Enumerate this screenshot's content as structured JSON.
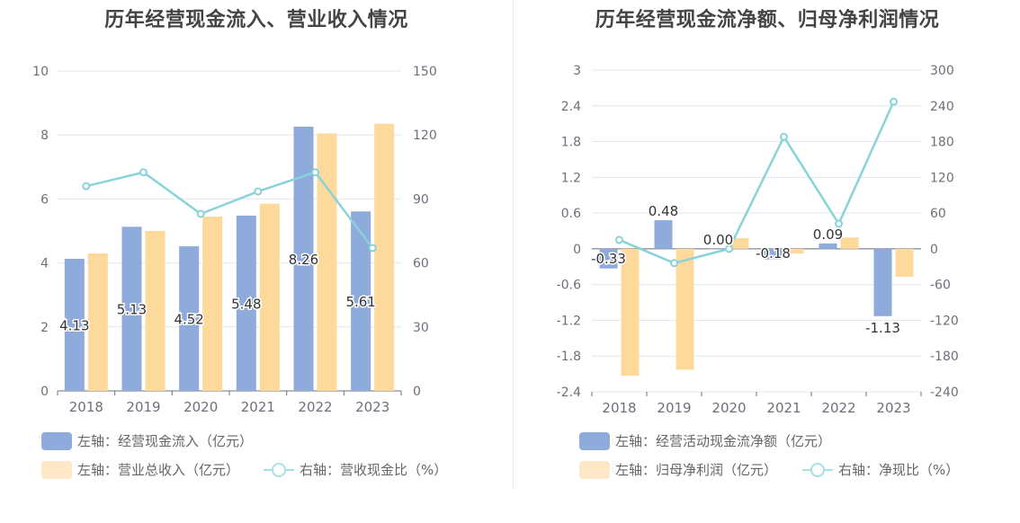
{
  "chart_data": [
    {
      "type": "bar",
      "title": "历年经营现金流入、营业收入情况",
      "categories": [
        "2018",
        "2019",
        "2020",
        "2021",
        "2022",
        "2023"
      ],
      "left_axis": {
        "ticks": [
          "0",
          "2",
          "4",
          "6",
          "8",
          "10"
        ],
        "ylim": [
          0,
          10
        ]
      },
      "right_axis": {
        "ticks": [
          "0",
          "30",
          "60",
          "90",
          "120",
          "150"
        ],
        "ylim": [
          0,
          150
        ]
      },
      "series": [
        {
          "name": "左轴：经营现金流入（亿元）",
          "axis": "left",
          "type": "bar",
          "color": "#8eabdb",
          "values": [
            4.13,
            5.13,
            4.52,
            5.48,
            8.26,
            5.61
          ],
          "labels": [
            "4.13",
            "5.13",
            "4.52",
            "5.48",
            "8.26",
            "5.61"
          ]
        },
        {
          "name": "左轴：营业总收入（亿元）",
          "axis": "left",
          "type": "bar",
          "color": "#fdd99b",
          "values": [
            4.3,
            5.0,
            5.45,
            5.85,
            8.05,
            8.35
          ]
        },
        {
          "name": "右轴：营收现金比（%）",
          "axis": "right",
          "type": "line",
          "color": "#88d3da",
          "values": [
            96,
            102.5,
            83,
            93.5,
            102.5,
            67
          ]
        }
      ],
      "grid": true,
      "legend_position": "bottom"
    },
    {
      "type": "bar",
      "title": "历年经营现金流净额、归母净利润情况",
      "categories": [
        "2018",
        "2019",
        "2020",
        "2021",
        "2022",
        "2023"
      ],
      "left_axis": {
        "ticks": [
          "-2.4",
          "-1.8",
          "-1.2",
          "-0.6",
          "0",
          "0.6",
          "1.2",
          "1.8",
          "2.4",
          "3"
        ],
        "ylim": [
          -2.4,
          3
        ]
      },
      "right_axis": {
        "ticks": [
          "-240",
          "-180",
          "-120",
          "-60",
          "0",
          "60",
          "120",
          "180",
          "240",
          "300"
        ],
        "ylim": [
          -240,
          300
        ]
      },
      "series": [
        {
          "name": "左轴：经营活动现金流净额（亿元）",
          "axis": "left",
          "type": "bar",
          "color": "#8eabdb",
          "values": [
            -0.33,
            0.48,
            0.0,
            -0.18,
            0.09,
            -1.13
          ],
          "labels": [
            "-0.33",
            "0.48",
            "0.00",
            "-0.18",
            "0.09",
            "-1.13"
          ]
        },
        {
          "name": "左轴：归母净利润（亿元）",
          "axis": "left",
          "type": "bar",
          "color": "#fdd99b",
          "values": [
            -2.13,
            -2.03,
            0.18,
            -0.08,
            0.19,
            -0.47
          ]
        },
        {
          "name": "右轴：净现比（%）",
          "axis": "right",
          "type": "line",
          "color": "#88d3da",
          "values": [
            15,
            -24,
            0,
            188,
            42,
            247
          ]
        }
      ],
      "grid": true,
      "legend_position": "bottom"
    }
  ]
}
